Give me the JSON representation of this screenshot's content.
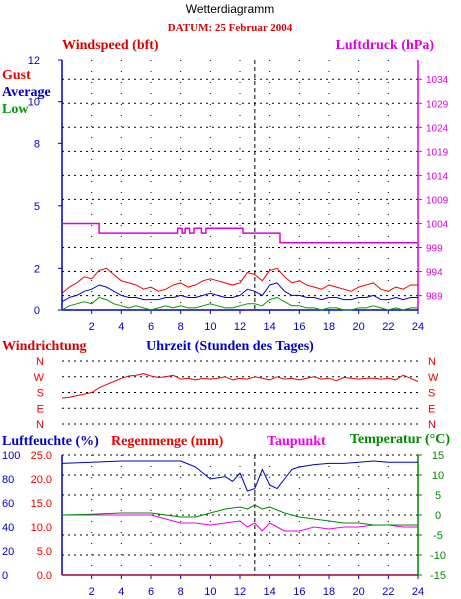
{
  "page": {
    "title": "Wetterdiagramm",
    "date_label": "DATUM: 25 Februar 2004"
  },
  "colors": {
    "axis": "#0000cc",
    "wind_label": "#dd0000",
    "pressure": "#dd00dd",
    "gust": "#ee0000",
    "average": "#0000cc",
    "low": "#009900",
    "humidity": "#0000cc",
    "rain": "#ee0000",
    "dewpoint": "#ee00ee",
    "temperature": "#008800",
    "grid": "#000000",
    "background": "#ffffff"
  },
  "chart_data": [
    {
      "type": "line",
      "title": "Windspeed (bft)",
      "y2label": "Luftdruck (hPa)",
      "ylim": [
        0,
        12
      ],
      "yticks": [
        "0",
        "2",
        "5",
        "8",
        "10",
        "12"
      ],
      "y2lim": [
        986,
        1038
      ],
      "y2ticks": [
        "989",
        "994",
        "999",
        "1004",
        "1009",
        "1014",
        "1019",
        "1024",
        "1029",
        "1034"
      ],
      "xlim": [
        0,
        24
      ],
      "xticks": [
        "2",
        "4",
        "6",
        "8",
        "10",
        "12",
        "14",
        "16",
        "18",
        "20",
        "22",
        "24"
      ],
      "legend": [
        "Gust",
        "Average",
        "Low"
      ],
      "legend_position": "left",
      "series": [
        {
          "name": "Gust",
          "axis": "y",
          "x_start": 0,
          "x_step": 0.5,
          "values": [
            0.8,
            1.1,
            1.3,
            1.6,
            1.5,
            1.9,
            2.0,
            1.7,
            1.4,
            1.3,
            1.2,
            1.0,
            1.1,
            0.9,
            1.0,
            1.2,
            1.3,
            1.1,
            1.2,
            1.4,
            1.5,
            1.4,
            1.3,
            1.2,
            1.3,
            1.8,
            1.7,
            1.4,
            1.9,
            2.0,
            1.6,
            1.3,
            1.4,
            1.2,
            1.1,
            1.0,
            1.2,
            1.1,
            1.0,
            0.9,
            1.1,
            1.2,
            1.3,
            1.0,
            0.9,
            1.1,
            1.0,
            1.2,
            1.2
          ]
        },
        {
          "name": "Average",
          "axis": "y",
          "x_start": 0,
          "x_step": 0.5,
          "values": [
            0.4,
            0.6,
            0.7,
            0.9,
            1.0,
            1.2,
            1.1,
            0.9,
            0.7,
            0.6,
            0.6,
            0.5,
            0.5,
            0.5,
            0.6,
            0.6,
            0.7,
            0.6,
            0.6,
            0.7,
            0.8,
            0.7,
            0.6,
            0.6,
            0.7,
            1.0,
            0.9,
            0.7,
            1.2,
            1.3,
            0.9,
            0.7,
            0.7,
            0.6,
            0.6,
            0.5,
            0.6,
            0.6,
            0.5,
            0.5,
            0.6,
            0.6,
            0.7,
            0.5,
            0.5,
            0.6,
            0.5,
            0.6,
            0.6
          ]
        },
        {
          "name": "Low",
          "axis": "y",
          "x_start": 0,
          "x_step": 0.5,
          "values": [
            0.0,
            0.2,
            0.3,
            0.4,
            0.3,
            0.6,
            0.5,
            0.3,
            0.2,
            0.1,
            0.2,
            0.1,
            0.0,
            0.1,
            0.2,
            0.1,
            0.2,
            0.1,
            0.1,
            0.2,
            0.3,
            0.2,
            0.1,
            0.1,
            0.2,
            0.3,
            0.3,
            0.2,
            0.5,
            0.6,
            0.4,
            0.2,
            0.2,
            0.1,
            0.1,
            0.0,
            0.1,
            0.1,
            0.0,
            0.0,
            0.1,
            0.1,
            0.2,
            0.1,
            0.0,
            0.1,
            0.0,
            0.1,
            0.1
          ]
        },
        {
          "name": "Luftdruck",
          "axis": "y2",
          "x": [
            0,
            2.5,
            2.5,
            7.8,
            7.8,
            8.1,
            8.1,
            8.3,
            8.3,
            8.6,
            8.6,
            8.9,
            8.9,
            9.4,
            9.4,
            9.7,
            9.7,
            12.2,
            12.2,
            14.7,
            14.7,
            24
          ],
          "values": [
            1004,
            1004,
            1002,
            1002,
            1003,
            1003,
            1002,
            1002,
            1003,
            1003,
            1002,
            1002,
            1003,
            1003,
            1002,
            1002,
            1003,
            1003,
            1002,
            1002,
            1000,
            1000
          ]
        }
      ]
    },
    {
      "type": "line",
      "title": "Windrichtung",
      "xlabel": "Uhrzeit (Stunden des Tages)",
      "yticks": [
        "N",
        "W",
        "S",
        "E",
        "N"
      ],
      "ylim": [
        0,
        4
      ],
      "xlim": [
        0,
        24
      ],
      "series": [
        {
          "name": "Windrichtung",
          "x_start": 0,
          "x_step": 0.5,
          "values": [
            1.65,
            1.7,
            1.8,
            1.9,
            2.0,
            2.3,
            2.5,
            2.7,
            2.9,
            3.05,
            3.1,
            3.2,
            3.05,
            2.95,
            3.0,
            3.1,
            2.85,
            2.9,
            2.8,
            2.9,
            2.85,
            2.9,
            3.0,
            2.8,
            2.9,
            2.85,
            3.0,
            2.9,
            2.8,
            3.0,
            2.85,
            2.9,
            2.8,
            2.9,
            3.0,
            2.85,
            2.9,
            2.75,
            2.95,
            2.9,
            2.85,
            2.9,
            2.9,
            2.85,
            2.9,
            2.8,
            3.1,
            2.9,
            2.7
          ]
        }
      ]
    },
    {
      "type": "line",
      "y1label_humidity": "Luftfeuchte (%)",
      "y1label_rain": "Regenmenge (mm)",
      "y2label_dewpoint": "Taupunkt",
      "y2label_temperature": "Temperatur (°C)",
      "yticks_humidity": [
        "100",
        "80",
        "60",
        "40",
        "20",
        "0"
      ],
      "yticks_rain": [
        "25.0",
        "20.0",
        "15.0",
        "10.0",
        "5.0",
        "0.0"
      ],
      "y2ticks": [
        "15",
        "10",
        "5",
        "0",
        "-5",
        "-10",
        "-15"
      ],
      "ylim_humidity": [
        0,
        100
      ],
      "y2lim": [
        -15,
        15
      ],
      "xlim": [
        0,
        24
      ],
      "xticks": [
        "2",
        "4",
        "6",
        "8",
        "10",
        "12",
        "14",
        "16",
        "18",
        "20",
        "22",
        "24"
      ],
      "series": [
        {
          "name": "Luftfeuchte",
          "axis": "humidity",
          "x": [
            0,
            2,
            4,
            6,
            8,
            9,
            9.5,
            10,
            11,
            11.5,
            12,
            12.5,
            13,
            13.5,
            14,
            14.5,
            15,
            15.5,
            16,
            17,
            18,
            19,
            20,
            21,
            22,
            23,
            24
          ],
          "values": [
            93,
            94,
            95,
            95,
            95,
            90,
            85,
            80,
            82,
            78,
            85,
            70,
            72,
            88,
            75,
            72,
            80,
            88,
            90,
            92,
            93,
            93,
            94,
            95,
            94,
            94,
            94
          ]
        },
        {
          "name": "Regenmenge",
          "axis": "rain",
          "x": [
            0,
            24
          ],
          "values": [
            0,
            0
          ]
        },
        {
          "name": "Taupunkt",
          "axis": "y2",
          "x": [
            0,
            2,
            4,
            6,
            7,
            8,
            9,
            10,
            11,
            12,
            12.5,
            13,
            13.5,
            14,
            14.5,
            15,
            16,
            17,
            18,
            19,
            20,
            21,
            22,
            23,
            24
          ],
          "values": [
            0,
            0,
            0,
            0,
            -1,
            -2,
            -2,
            -2.5,
            -2,
            -1.5,
            -3,
            -2,
            -4,
            -2,
            -3,
            -4,
            -4,
            -3,
            -3.5,
            -3,
            -3,
            -2.5,
            -2.5,
            -3,
            -3
          ]
        },
        {
          "name": "Temperatur",
          "axis": "y2",
          "x": [
            0,
            2,
            4,
            6,
            8,
            9,
            10,
            11,
            12,
            12.5,
            13,
            13.5,
            14,
            15,
            16,
            17,
            18,
            19,
            20,
            21,
            22,
            23,
            24
          ],
          "values": [
            0,
            0.2,
            0.5,
            0.5,
            -0.5,
            -0.5,
            0.5,
            1.5,
            2,
            1.5,
            2.5,
            1.5,
            2,
            0.5,
            -0.5,
            -1,
            -1.5,
            -2,
            -2,
            -2.5,
            -2.5,
            -2.5,
            -2.5
          ]
        }
      ]
    }
  ]
}
